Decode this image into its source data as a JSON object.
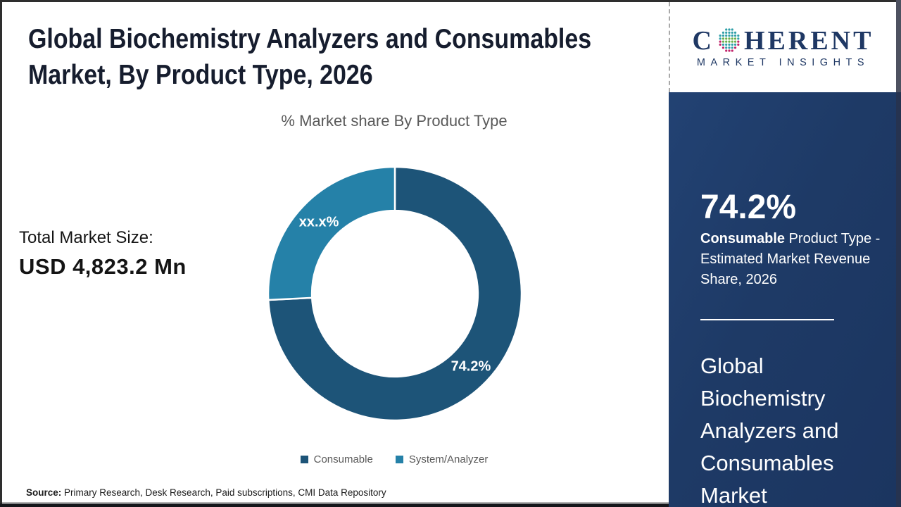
{
  "header": {
    "title_lines": [
      "Global Biochemistry Analyzers and Consumables",
      "Market, By Product Type, 2026"
    ]
  },
  "chart_data": {
    "type": "pie",
    "subtype": "donut",
    "title": "% Market share By Product Type",
    "categories": [
      "Consumable",
      "System/Analyzer"
    ],
    "values": [
      74.2,
      25.8
    ],
    "slice_labels": [
      "74.2%",
      "xx.x%"
    ],
    "colors": [
      "#1d5478",
      "#2581a8"
    ],
    "start_angle_deg": 0,
    "direction": "clockwise",
    "donut_hole_ratio": 0.655,
    "legend_position": "bottom",
    "note": "System/Analyzer slice value is masked as xx.x% in the image"
  },
  "left_panel": {
    "total_label": "Total Market Size:",
    "total_value": "USD 4,823.2 Mn"
  },
  "source": {
    "label": "Source:",
    "text": " Primary Research, Desk Research, Paid subscriptions, CMI Data Repository"
  },
  "logo": {
    "word_start": "C",
    "word_end": "HERENT",
    "subtext": "MARKET INSIGHTS",
    "navy": "#1f3864",
    "globe_colors": {
      "teal": "#2f9fa8",
      "green": "#6aaf4b",
      "magenta": "#c1246b"
    }
  },
  "sidebar": {
    "stat_value": "74.2%",
    "desc_bold": "Consumable",
    "desc_rest": " Product Type - Estimated Market Revenue Share, 2026",
    "market_name_lines": [
      "Global",
      "Biochemistry",
      "Analyzers and",
      "Consumables",
      "Market"
    ],
    "background": "#1e3a66"
  }
}
